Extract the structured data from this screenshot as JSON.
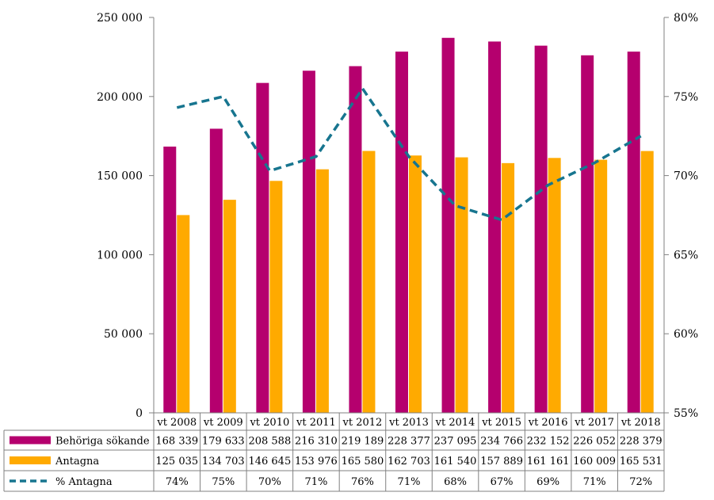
{
  "chart_data": {
    "type": "bar",
    "categories": [
      "vt 2008",
      "vt 2009",
      "vt 2010",
      "vt 2011",
      "vt 2012",
      "vt 2013",
      "vt 2014",
      "vt 2015",
      "vt 2016",
      "vt 2017",
      "vt 2018"
    ],
    "series": [
      {
        "name": "Behöriga sökande",
        "kind": "bar",
        "axis": "left",
        "color": "#b5006e",
        "values": [
          168339,
          179633,
          208588,
          216310,
          219189,
          228377,
          237095,
          234766,
          232152,
          226052,
          228379
        ],
        "labels": [
          "168 339",
          "179 633",
          "208 588",
          "216 310",
          "219 189",
          "228 377",
          "237 095",
          "234 766",
          "232 152",
          "226 052",
          "228 379"
        ]
      },
      {
        "name": "Antagna",
        "kind": "bar",
        "axis": "left",
        "color": "#ffaa00",
        "values": [
          125035,
          134703,
          146645,
          153976,
          165580,
          162703,
          161540,
          157889,
          161161,
          160009,
          165531
        ],
        "labels": [
          "125 035",
          "134 703",
          "146 645",
          "153 976",
          "165 580",
          "162 703",
          "161 540",
          "157 889",
          "161 161",
          "160 009",
          "165 531"
        ]
      },
      {
        "name": "% Antagna",
        "kind": "line",
        "style": "dashed",
        "axis": "right",
        "color": "#17758f",
        "values": [
          74.3,
          75.0,
          70.3,
          71.2,
          75.5,
          71.2,
          68.1,
          67.2,
          69.4,
          70.8,
          72.5
        ],
        "labels": [
          "74%",
          "75%",
          "70%",
          "71%",
          "76%",
          "71%",
          "68%",
          "67%",
          "69%",
          "71%",
          "72%"
        ]
      }
    ],
    "y_left": {
      "ylim": [
        0,
        250000
      ],
      "tick_values": [
        0,
        50000,
        100000,
        150000,
        200000,
        250000
      ],
      "tick_labels": [
        "0",
        "50 000",
        "100 000",
        "150 000",
        "200 000",
        "250 000"
      ]
    },
    "y_right": {
      "ylim": [
        55,
        80
      ],
      "tick_values": [
        55,
        60,
        65,
        70,
        75,
        80
      ],
      "tick_labels": [
        "55%",
        "60%",
        "65%",
        "70%",
        "75%",
        "80%"
      ]
    },
    "grid": false,
    "legend": "data-table-bottom"
  }
}
